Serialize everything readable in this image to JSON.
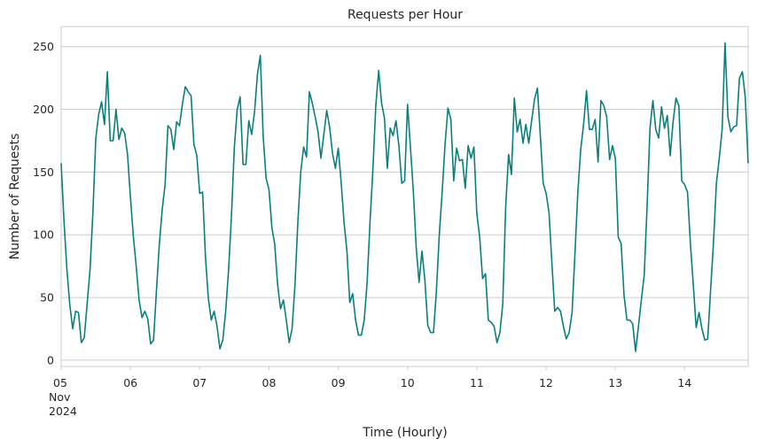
{
  "chart_data": {
    "type": "line",
    "title": "Requests per Hour",
    "xlabel": "Time (Hourly)",
    "ylabel": "Number of Requests",
    "x_start": "2024-11-05T00:00",
    "x_interval": "1 hour",
    "ylim": [
      -5,
      266
    ],
    "yticks": [
      0,
      50,
      100,
      150,
      200,
      250
    ],
    "xticks": [
      {
        "day": "05",
        "month": "Nov",
        "year": "2024"
      },
      {
        "day": "06"
      },
      {
        "day": "07"
      },
      {
        "day": "08"
      },
      {
        "day": "09"
      },
      {
        "day": "10"
      },
      {
        "day": "11"
      },
      {
        "day": "12"
      },
      {
        "day": "13"
      },
      {
        "day": "14"
      }
    ],
    "grid": "horizontal",
    "legend": "none",
    "line_color": "#0a7f7c",
    "series": [
      {
        "values": [
          157,
          110,
          72,
          44,
          25,
          39,
          38,
          14,
          18,
          45,
          72,
          118,
          177,
          196,
          206,
          188,
          230,
          175,
          175,
          200,
          176,
          185,
          181,
          164,
          130,
          99,
          75,
          48,
          34,
          39,
          33,
          13,
          16,
          55,
          92,
          120,
          140,
          187,
          184,
          168,
          190,
          187,
          204,
          218,
          214,
          211,
          172,
          163,
          133,
          134,
          82,
          49,
          32,
          39,
          27,
          9,
          16,
          39,
          72,
          115,
          170,
          200,
          210,
          156,
          156,
          191,
          180,
          198,
          228,
          243,
          178,
          145,
          136,
          106,
          92,
          60,
          41,
          48,
          32,
          14,
          25,
          60,
          110,
          150,
          170,
          162,
          214,
          205,
          194,
          182,
          161,
          180,
          199,
          186,
          165,
          153,
          169,
          142,
          110,
          87,
          46,
          53,
          32,
          20,
          20,
          32,
          62,
          110,
          152,
          203,
          231,
          205,
          193,
          153,
          185,
          179,
          191,
          171,
          141,
          143,
          204,
          170,
          135,
          90,
          62,
          87,
          64,
          28,
          22,
          22,
          55,
          100,
          134,
          172,
          201,
          192,
          143,
          169,
          159,
          160,
          137,
          171,
          161,
          170,
          117,
          98,
          65,
          69,
          32,
          30,
          27,
          14,
          22,
          45,
          122,
          164,
          148,
          209,
          182,
          192,
          173,
          188,
          173,
          191,
          208,
          217,
          179,
          141,
          133,
          118,
          78,
          39,
          42,
          39,
          27,
          17,
          22,
          38,
          85,
          134,
          168,
          188,
          215,
          184,
          184,
          192,
          158,
          207,
          203,
          194,
          160,
          171,
          161,
          98,
          93,
          52,
          32,
          32,
          29,
          7,
          27,
          48,
          68,
          123,
          185,
          207,
          184,
          177,
          202,
          185,
          195,
          163,
          190,
          209,
          203,
          143,
          140,
          134,
          93,
          60,
          26,
          38,
          25,
          16,
          17,
          56,
          94,
          141,
          161,
          184,
          253,
          194,
          182,
          186,
          187,
          225,
          230,
          210,
          157
        ]
      }
    ]
  }
}
